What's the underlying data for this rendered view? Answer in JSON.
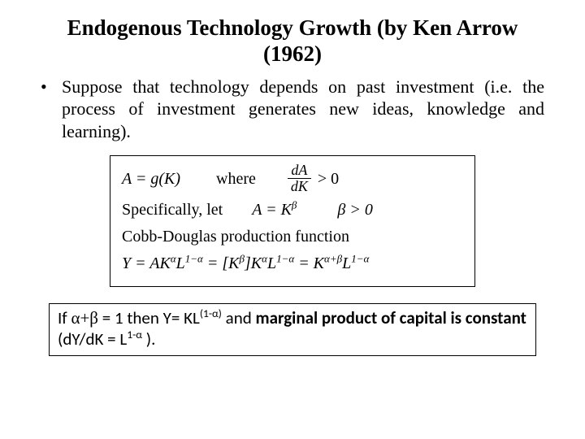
{
  "title": "Endogenous Technology Growth (by Ken Arrow (1962)",
  "bullet1": "Suppose that technology depends on past investment (i.e. the process of investment generates new ideas, knowledge and learning).",
  "math": {
    "row1_left": "A = g(K)",
    "row1_where": "where",
    "row1_frac_num": "dA",
    "row1_frac_den": "dK",
    "row1_gt": "> 0",
    "row2_left": "Specifically, let",
    "row2_eq": "A = K",
    "row2_beta_sup": "β",
    "row2_cond": "β > 0",
    "row3": "Cobb-Douglas production function",
    "row4_Y": "Y = AK",
    "row4_a": "α",
    "row4_L": "L",
    "row4_1ma": "1−α",
    "row4_eq2_open": " = [K",
    "row4_eq2_close": "]K",
    "row4_eq3": " = K",
    "row4_apb": "α+β",
    "row4_beta": "β"
  },
  "note": {
    "pre": "If ",
    "ab": "α+β",
    "mid": " = 1 then Y= KL",
    "exp1": "(1-α)",
    "mid2": " and ",
    "bold1": "marginal product of capital is constant",
    "post1": " (dY/dK = L",
    "exp2": "1-α",
    "post2": " )."
  }
}
